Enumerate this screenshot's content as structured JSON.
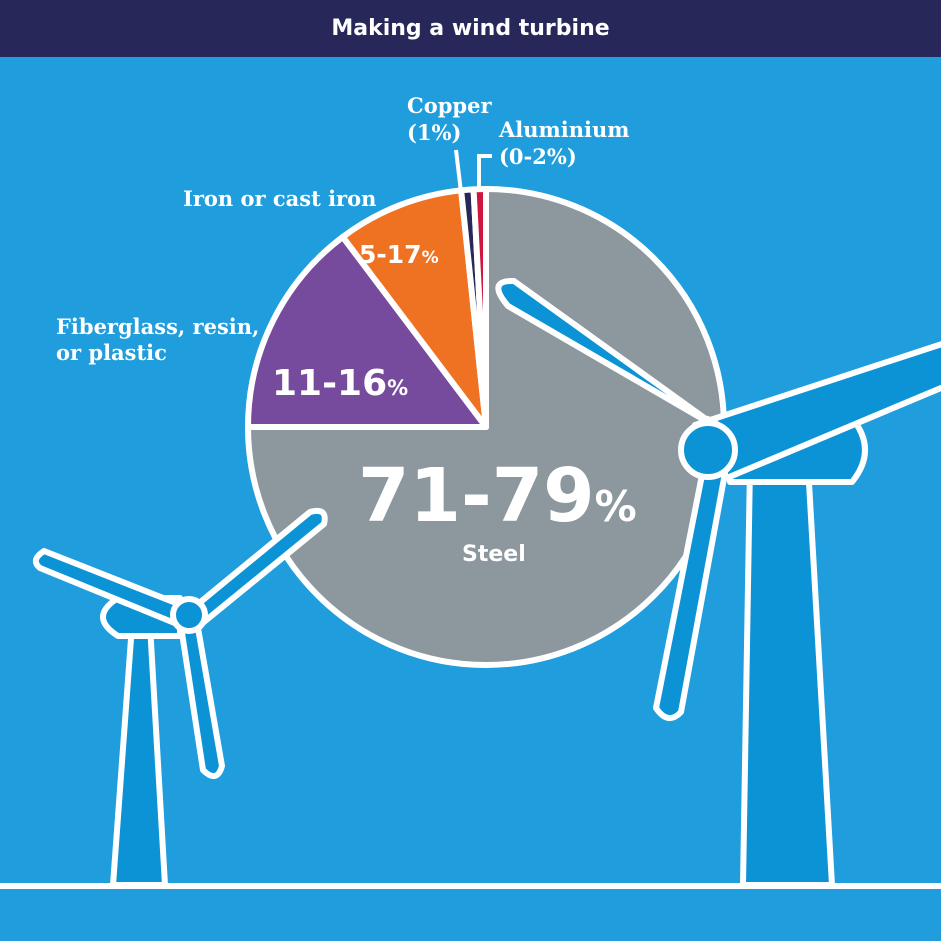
{
  "title": "Making a wind turbine",
  "colors": {
    "background": "#1f9ddc",
    "title_bar": "#27275a",
    "turbine": "#0c93d6",
    "outline": "#ffffff"
  },
  "chart_data": {
    "type": "pie",
    "title": "Making a wind turbine",
    "unit": "%",
    "slices": [
      {
        "name": "Steel",
        "range": "71-79",
        "color": "#8d979e"
      },
      {
        "name": "Fiberglass, resin, or plastic",
        "name_lines": [
          "Fiberglass, resin,",
          "or plastic"
        ],
        "range": "11-16",
        "color": "#764b9e"
      },
      {
        "name": "Iron or cast iron",
        "range": "5-17",
        "color": "#ef7223"
      },
      {
        "name": "Copper",
        "range": "(1%)",
        "color": "#27275a"
      },
      {
        "name": "Aluminium",
        "range": "(0-2%)",
        "color": "#d0163f"
      }
    ]
  }
}
